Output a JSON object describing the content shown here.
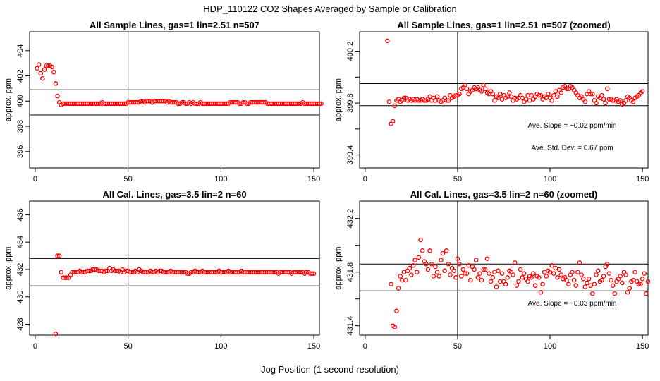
{
  "page": {
    "title": "HDP_110122  CO2 Shapes Averaged by Sample or Calibration",
    "xlabel": "Jog Position (1 second resolution)"
  },
  "chart_data": [
    {
      "type": "scatter",
      "title": "All Sample Lines, gas=1 lin=2.51 n=507",
      "ylabel": "approx. ppm",
      "xlim": [
        -3,
        153
      ],
      "ylim": [
        394.7,
        405.5
      ],
      "xticks": [
        0,
        50,
        100,
        150
      ],
      "yticks": [
        396,
        398,
        400,
        402,
        404
      ],
      "hlines": [
        400.9,
        398.9
      ],
      "vline": 50,
      "annotations": [],
      "series": [
        {
          "x_start": 1,
          "values": [
            402.6,
            402.9,
            402.2,
            401.8,
            402.5,
            402.8,
            402.8,
            402.8,
            402.7,
            402.3,
            401.4,
            400.4,
            399.9,
            399.7,
            399.8,
            399.8,
            399.8,
            399.8,
            399.8,
            399.8,
            399.8,
            399.8,
            399.8,
            399.8,
            399.8,
            399.8,
            399.8,
            399.8,
            399.8,
            399.8,
            399.8,
            399.8,
            399.8,
            399.8,
            399.8,
            399.9,
            399.8,
            399.8,
            399.8,
            399.8,
            399.8,
            399.8,
            399.8,
            399.8,
            399.8,
            399.8,
            399.8,
            399.8,
            399.8,
            399.9,
            399.9,
            399.9,
            399.9,
            399.9,
            399.9,
            399.9,
            400.0,
            400.0,
            399.9,
            400.0,
            400.0,
            400.0,
            399.9,
            400.0,
            400.0,
            400.0,
            400.0,
            400.0,
            400.0,
            400.0,
            399.9,
            400.0,
            399.9,
            399.9,
            399.9,
            399.9,
            399.8,
            399.8,
            399.9,
            399.9,
            399.8,
            399.8,
            399.9,
            399.8,
            399.9,
            399.8,
            399.8,
            399.8,
            399.9,
            399.8,
            399.8,
            399.8,
            399.8,
            399.8,
            399.8,
            399.8,
            399.8,
            399.8,
            399.8,
            399.8,
            399.8,
            399.8,
            399.8,
            399.8,
            399.9,
            399.9,
            399.9,
            399.9,
            399.9,
            399.8,
            399.8,
            399.9,
            399.9,
            399.8,
            399.8,
            399.9,
            399.9,
            399.9,
            399.9,
            399.9,
            399.9,
            399.9,
            399.9,
            399.9,
            399.8,
            399.8,
            399.8,
            399.8,
            399.8,
            399.8,
            399.8,
            399.8,
            399.8,
            399.8,
            399.8,
            399.8,
            399.8,
            399.8,
            399.8,
            399.8,
            399.8,
            399.8,
            399.8,
            399.9,
            399.8,
            399.8,
            399.8,
            399.8,
            399.8,
            399.8,
            399.8,
            399.8,
            399.8,
            399.8
          ]
        }
      ]
    },
    {
      "type": "scatter",
      "title": "All Sample Lines, gas=1 lin=2.51 n=507 (zoomed)",
      "ylabel": "approx. ppm",
      "xlim": [
        -3,
        153
      ],
      "ylim": [
        399.3,
        400.35
      ],
      "xticks": [
        0,
        50,
        100,
        150
      ],
      "yticks": [
        399.4,
        399.6,
        399.8,
        400.0,
        400.2
      ],
      "ytick_labels": [
        "399.4",
        "",
        "399.8",
        "",
        "400.2"
      ],
      "hlines": [
        399.95,
        399.78
      ],
      "vline": 50,
      "annotations": [
        {
          "text": "Ave. Slope =  −0.02  ppm/min",
          "x": 112,
          "y": 399.61
        },
        {
          "text": "Ave. Std. Dev. =  0.67  ppm",
          "x": 112,
          "y": 399.44
        }
      ],
      "series": [
        {
          "x_start": 12,
          "values": [
            400.28,
            399.81,
            399.64,
            399.66,
            399.78,
            399.82,
            399.83,
            399.81,
            399.82,
            399.84,
            399.84,
            399.82,
            399.83,
            399.82,
            399.83,
            399.82,
            399.83,
            399.82,
            399.82,
            399.83,
            399.82,
            399.82,
            399.83,
            399.85,
            399.82,
            399.84,
            399.82,
            399.85,
            399.82,
            399.81,
            399.82,
            399.84,
            399.82,
            399.82,
            399.86,
            399.84,
            399.85,
            399.86,
            399.86,
            399.87,
            399.91,
            399.92,
            399.94,
            399.91,
            399.87,
            399.89,
            399.9,
            399.92,
            399.91,
            399.92,
            399.9,
            399.89,
            399.94,
            399.91,
            399.88,
            399.87,
            399.89,
            399.87,
            399.82,
            399.85,
            399.84,
            399.87,
            399.83,
            399.86,
            399.84,
            399.85,
            399.88,
            399.85,
            399.82,
            399.84,
            399.83,
            399.84,
            399.86,
            399.84,
            399.81,
            399.83,
            399.86,
            399.82,
            399.86,
            399.83,
            399.85,
            399.87,
            399.86,
            399.86,
            399.83,
            399.85,
            399.84,
            399.87,
            399.84,
            399.82,
            399.86,
            399.89,
            399.85,
            399.9,
            399.88,
            399.92,
            399.93,
            399.91,
            399.91,
            399.93,
            399.92,
            399.9,
            399.88,
            399.86,
            399.84,
            399.85,
            399.83,
            399.81,
            399.87,
            399.89,
            399.87,
            399.87,
            399.82,
            399.8,
            399.85,
            399.84,
            399.86,
            399.83,
            399.8,
            399.91,
            399.83,
            399.83,
            399.82,
            399.82,
            399.83,
            399.81,
            399.82,
            399.79,
            399.8,
            399.82,
            399.85,
            399.84,
            399.82,
            399.81,
            399.84,
            399.85,
            399.86,
            399.88,
            399.89
          ]
        }
      ]
    },
    {
      "type": "scatter",
      "title": "All Cal. Lines, gas=3.5 lin=2 n=60",
      "ylabel": "approx. ppm",
      "xlim": [
        -3,
        153
      ],
      "ylim": [
        427.2,
        437.0
      ],
      "xticks": [
        0,
        50,
        100,
        150
      ],
      "yticks": [
        428,
        430,
        432,
        434,
        436
      ],
      "hlines": [
        432.8,
        430.8
      ],
      "vline": 50,
      "annotations": [],
      "series": [
        {
          "x_start": 11,
          "values": [
            427.3,
            433.0,
            433.0,
            431.8,
            431.4,
            431.4,
            431.4,
            431.4,
            431.6,
            431.8,
            431.8,
            431.8,
            431.8,
            431.9,
            431.8,
            431.8,
            431.8,
            431.9,
            431.9,
            431.9,
            432.0,
            432.0,
            432.0,
            431.9,
            431.9,
            431.9,
            431.8,
            431.9,
            431.9,
            432.1,
            431.9,
            432.0,
            431.9,
            431.9,
            431.9,
            431.8,
            432.0,
            431.8,
            431.9,
            431.9,
            431.8,
            431.8,
            431.8,
            431.9,
            431.8,
            432.0,
            431.9,
            431.8,
            431.8,
            431.8,
            431.8,
            431.9,
            431.8,
            431.8,
            431.9,
            431.8,
            431.9,
            431.9,
            431.8,
            431.8,
            431.8,
            431.8,
            431.9,
            431.8,
            431.8,
            431.8,
            431.8,
            431.8,
            431.8,
            431.8,
            431.8,
            431.7,
            431.7,
            431.8,
            431.8,
            431.9,
            431.8,
            431.8,
            431.8,
            431.9,
            431.8,
            431.8,
            431.8,
            431.8,
            431.8,
            431.8,
            431.8,
            431.8,
            431.9,
            431.8,
            431.8,
            431.8,
            431.8,
            431.9,
            431.8,
            431.8,
            431.8,
            431.8,
            431.8,
            431.8,
            431.9,
            431.8,
            431.8,
            431.8,
            431.8,
            431.8,
            431.8,
            431.8,
            431.8,
            431.8,
            431.8,
            431.8,
            431.8,
            431.8,
            431.8,
            431.8,
            431.8,
            431.8,
            431.8,
            431.8,
            431.7,
            431.8,
            431.8,
            431.8,
            431.8,
            431.8,
            431.8,
            431.7,
            431.8,
            431.8,
            431.8,
            431.8,
            431.8,
            431.8,
            431.7,
            431.8,
            431.8,
            431.7,
            431.7,
            431.7
          ]
        }
      ]
    },
    {
      "type": "scatter",
      "title": "All Cal. Lines, gas=3.5 lin=2 n=60 (zoomed)",
      "ylabel": "approx. ppm",
      "xlim": [
        -3,
        153
      ],
      "ylim": [
        431.33,
        432.33
      ],
      "xticks": [
        0,
        50,
        100,
        150
      ],
      "yticks": [
        431.4,
        431.6,
        431.8,
        432.0,
        432.2
      ],
      "ytick_labels": [
        "431.4",
        "",
        "431.8",
        "",
        "432.2"
      ],
      "hlines": [
        431.86,
        431.66
      ],
      "vline": 50,
      "annotations": [
        {
          "text": "Ave. Slope =  −0.03  ppm/min",
          "x": 112,
          "y": 431.55
        }
      ],
      "series": [
        {
          "x_start": 14,
          "values": [
            431.71,
            431.4,
            431.39,
            431.51,
            431.68,
            431.77,
            431.74,
            431.8,
            431.74,
            431.81,
            431.83,
            431.78,
            431.85,
            431.89,
            431.8,
            431.91,
            432.04,
            431.96,
            431.88,
            431.86,
            431.82,
            431.96,
            431.86,
            431.77,
            431.84,
            431.8,
            431.77,
            431.89,
            431.94,
            431.81,
            431.96,
            431.86,
            431.78,
            431.83,
            431.81,
            431.76,
            431.9,
            431.86,
            431.77,
            431.82,
            431.79,
            431.79,
            431.85,
            431.74,
            431.84,
            431.82,
            431.89,
            431.76,
            431.79,
            431.74,
            431.82,
            431.82,
            431.9,
            431.79,
            431.73,
            431.76,
            431.8,
            431.69,
            431.81,
            431.73,
            431.79,
            431.73,
            431.71,
            431.76,
            431.81,
            431.8,
            431.78,
            431.87,
            431.7,
            431.73,
            431.82,
            431.76,
            431.79,
            431.75,
            431.73,
            431.77,
            431.76,
            431.79,
            431.7,
            431.77,
            431.76,
            431.65,
            431.71,
            431.8,
            431.77,
            431.81,
            431.8,
            431.85,
            431.79,
            431.83,
            431.76,
            431.82,
            431.78,
            431.75,
            431.76,
            431.74,
            431.71,
            431.78,
            431.8,
            431.74,
            431.7,
            431.8,
            431.87,
            431.78,
            431.75,
            431.69,
            431.72,
            431.75,
            431.7,
            431.64,
            431.71,
            431.78,
            431.81,
            431.73,
            431.74,
            431.77,
            431.84,
            431.86,
            431.79,
            431.74,
            431.7,
            431.64,
            431.73,
            431.75,
            431.77,
            431.72,
            431.8,
            431.78,
            431.65,
            431.68,
            431.73,
            431.74,
            431.8,
            431.73,
            431.71,
            431.71,
            431.75,
            431.79,
            431.64,
            431.73
          ]
        }
      ]
    }
  ]
}
